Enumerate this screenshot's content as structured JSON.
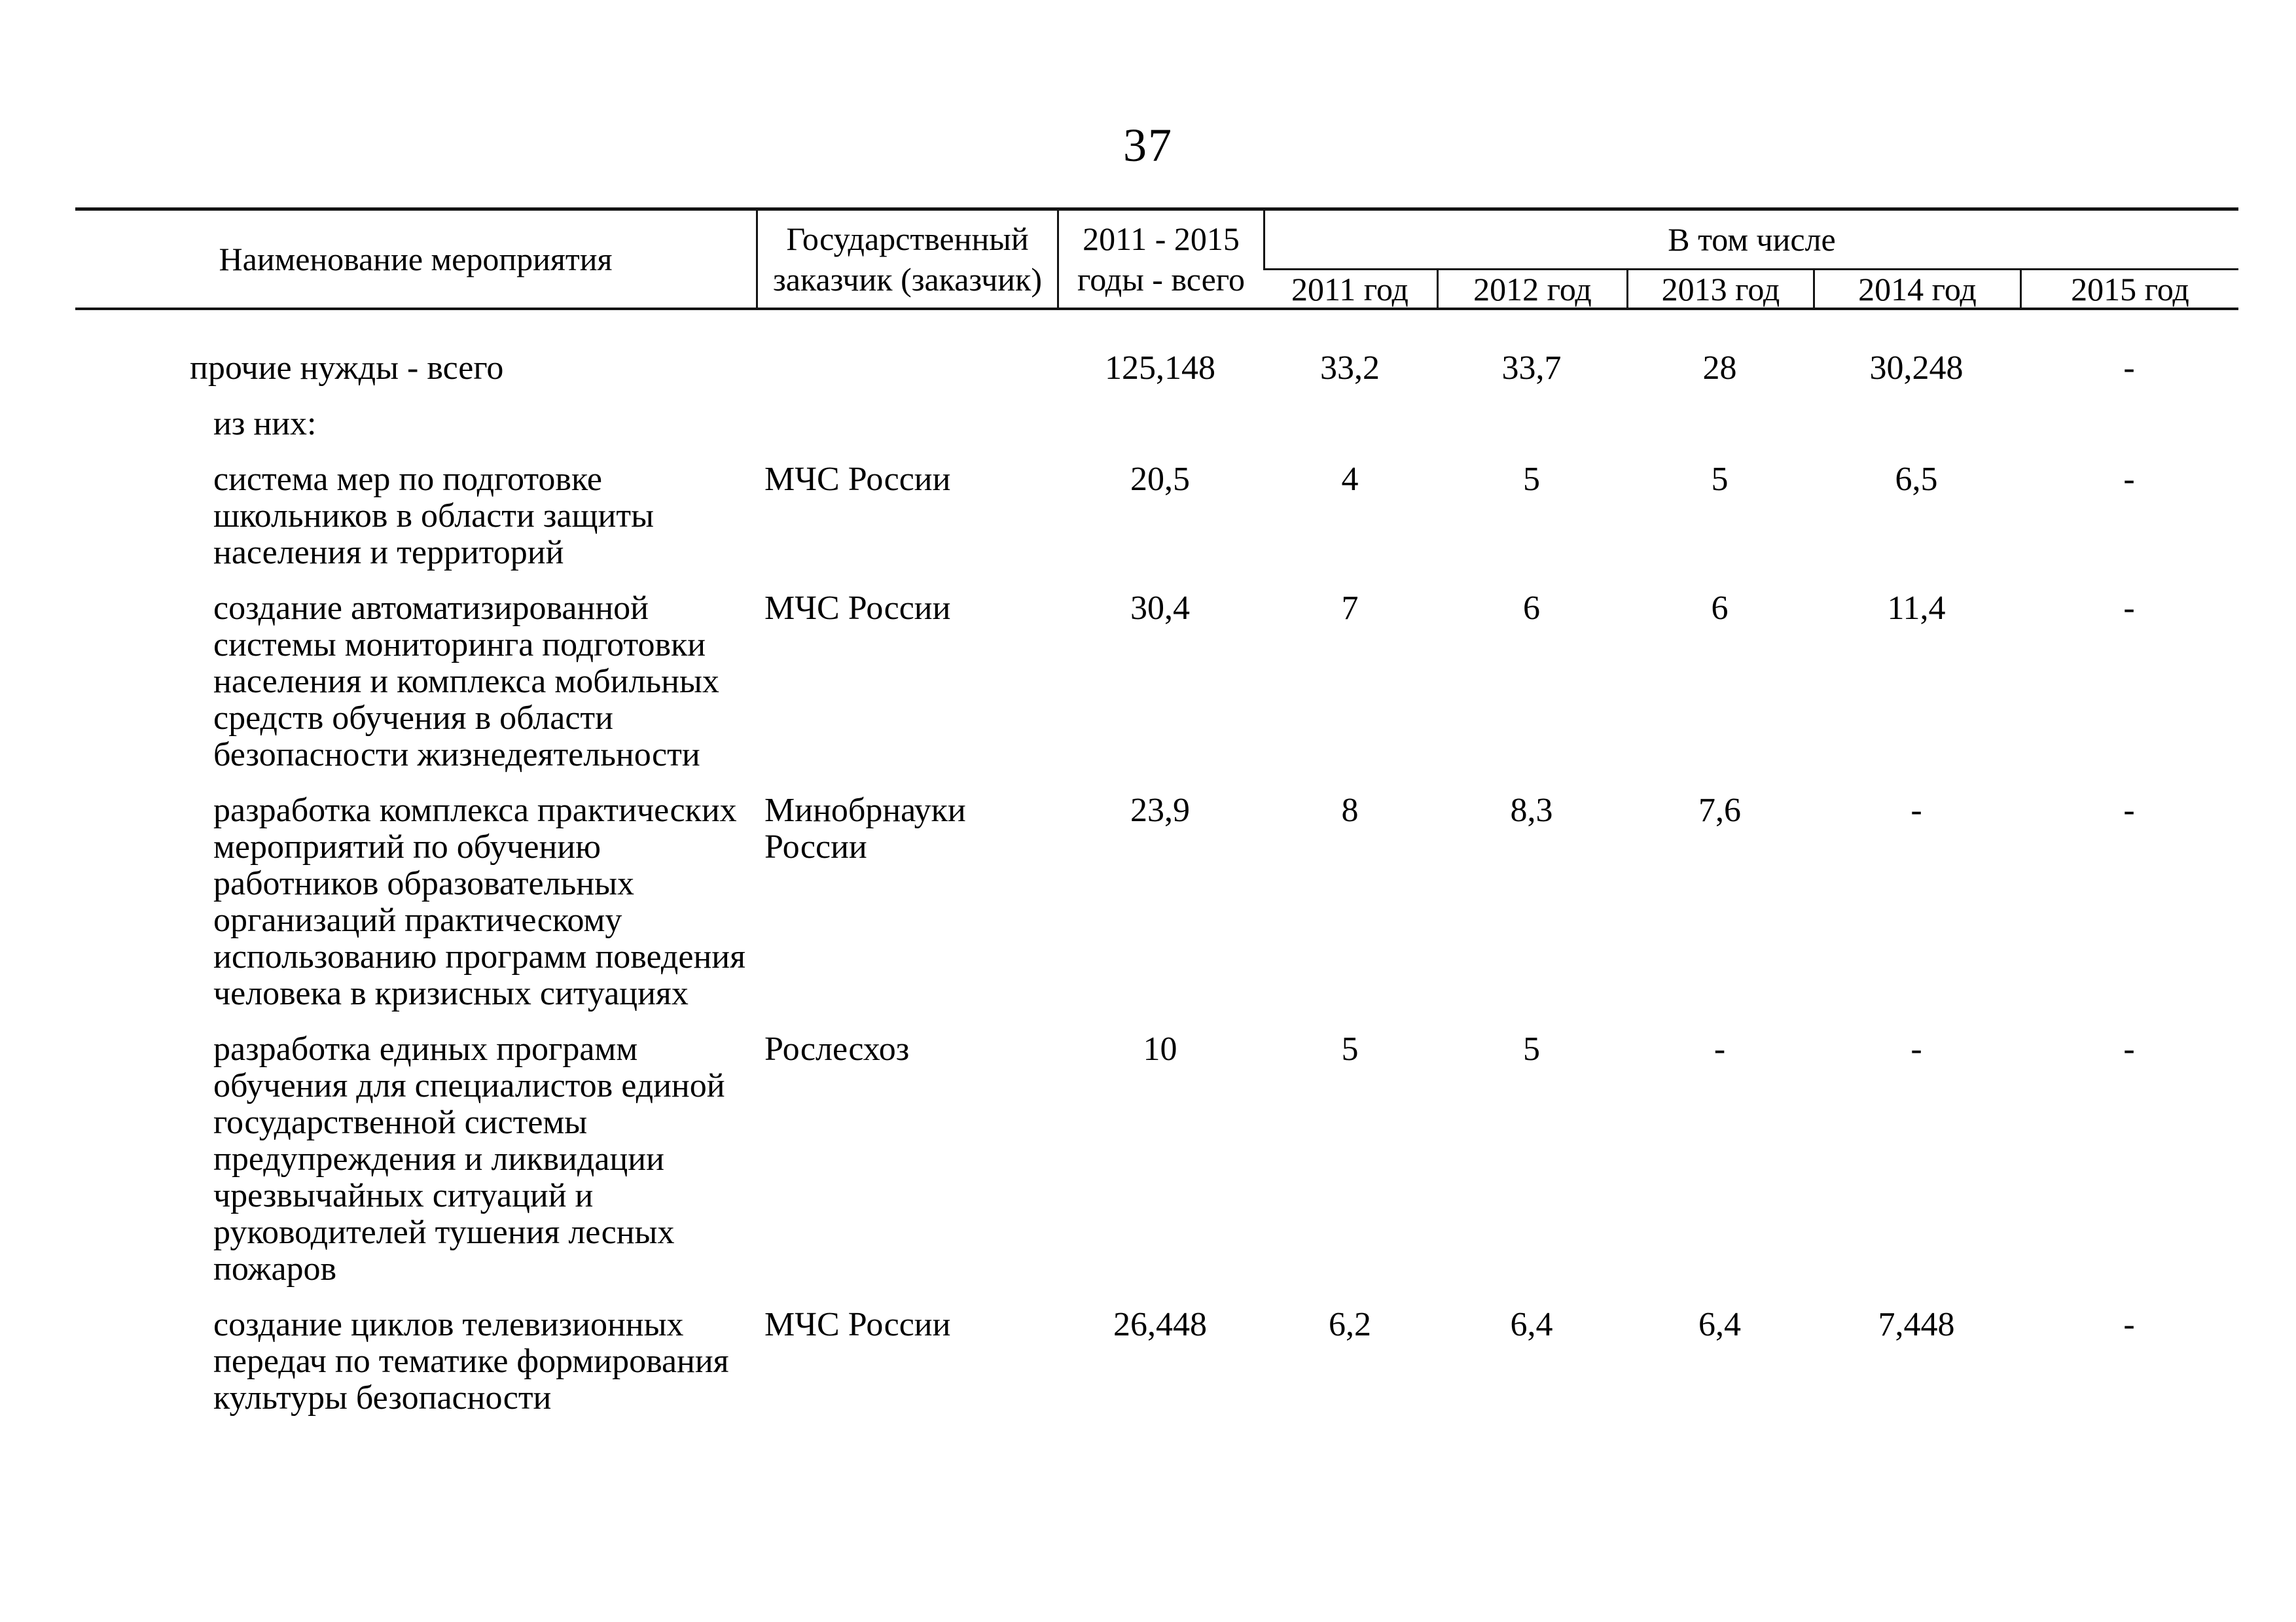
{
  "page": {
    "number": "37"
  },
  "table": {
    "headers": {
      "name": "Наименование мероприятия",
      "customer": "Государственный\nзаказчик (заказчик)",
      "total": "2011 - 2015\nгоды - всего",
      "including": "В том числе",
      "years": [
        "2011 год",
        "2012 год",
        "2013 год",
        "2014 год",
        "2015 год"
      ]
    },
    "rows": [
      {
        "name": "прочие нужды - всего",
        "customer": "",
        "total": "125,148",
        "y2011": "33,2",
        "y2012": "33,7",
        "y2013": "28",
        "y2014": "30,248",
        "y2015": "-"
      },
      {
        "name": "из них:",
        "customer": "",
        "total": "",
        "y2011": "",
        "y2012": "",
        "y2013": "",
        "y2014": "",
        "y2015": ""
      },
      {
        "name": "система мер по подготовке\nшкольников в области защиты\nнаселения и территорий",
        "customer": "МЧС России",
        "total": "20,5",
        "y2011": "4",
        "y2012": "5",
        "y2013": "5",
        "y2014": "6,5",
        "y2015": "-"
      },
      {
        "name": "создание автоматизированной\nсистемы мониторинга подготовки\nнаселения и комплекса мобильных\nсредств обучения в области\nбезопасности жизнедеятельности",
        "customer": "МЧС России",
        "total": "30,4",
        "y2011": "7",
        "y2012": "6",
        "y2013": "6",
        "y2014": "11,4",
        "y2015": "-"
      },
      {
        "name": "разработка комплекса практических\nмероприятий по обучению\nработников образовательных\nорганизаций практическому\nиспользованию программ поведения\nчеловека в кризисных ситуациях",
        "customer": "Минобрнауки\nРоссии",
        "total": "23,9",
        "y2011": "8",
        "y2012": "8,3",
        "y2013": "7,6",
        "y2014": "-",
        "y2015": "-"
      },
      {
        "name": "разработка единых программ\nобучения для специалистов единой\nгосударственной системы\nпредупреждения и ликвидации\nчрезвычайных ситуаций и\nруководителей тушения лесных\nпожаров",
        "customer": "Рослесхоз",
        "total": "10",
        "y2011": "5",
        "y2012": "5",
        "y2013": "-",
        "y2014": "-",
        "y2015": "-"
      },
      {
        "name": "создание циклов телевизионных\nпередач по тематике формирования\nкультуры безопасности",
        "customer": "МЧС России",
        "total": "26,448",
        "y2011": "6,2",
        "y2012": "6,4",
        "y2013": "6,4",
        "y2014": "7,448",
        "y2015": "-"
      }
    ]
  }
}
